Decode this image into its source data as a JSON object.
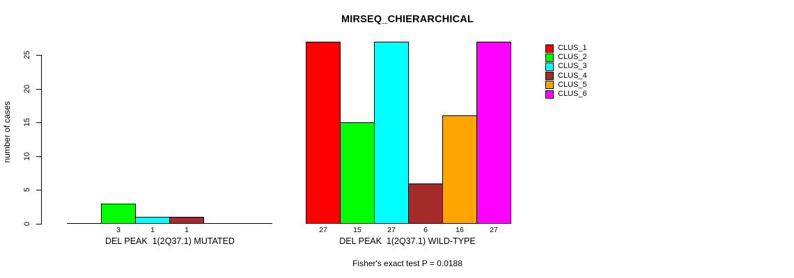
{
  "chart_data": {
    "type": "bar",
    "title": "MIRSEQ_CHIERARCHICAL",
    "ylabel": "number of cases",
    "yticks": [
      0,
      5,
      10,
      15,
      20,
      25
    ],
    "ylim": [
      0,
      27
    ],
    "grid": false,
    "legend_position": "right",
    "clusters": [
      {
        "name": "CLUS_1",
        "color": "#FF0000"
      },
      {
        "name": "CLUS_2",
        "color": "#00FF00"
      },
      {
        "name": "CLUS_3",
        "color": "#00FFFF"
      },
      {
        "name": "CLUS_4",
        "color": "#A52A2A"
      },
      {
        "name": "CLUS_5",
        "color": "#FFA500"
      },
      {
        "name": "CLUS_6",
        "color": "#FF00FF"
      }
    ],
    "groups": [
      {
        "label": "DEL PEAK  1(2Q37.1) MUTATED",
        "values": [
          0,
          3,
          1,
          1,
          0,
          0
        ],
        "shown_bar_labels": [
          "3",
          "1",
          "1"
        ]
      },
      {
        "label": "DEL PEAK  1(2Q37.1) WILD-TYPE",
        "values": [
          27,
          15,
          27,
          6,
          16,
          27
        ],
        "shown_bar_labels": [
          "27",
          "15",
          "27",
          "6",
          "16",
          "27"
        ]
      }
    ],
    "footnote": "Fisher's exact test P = 0.0188",
    "colors": {
      "background": "#FFFFFF",
      "axis": "#000000",
      "text": "#000000"
    }
  }
}
